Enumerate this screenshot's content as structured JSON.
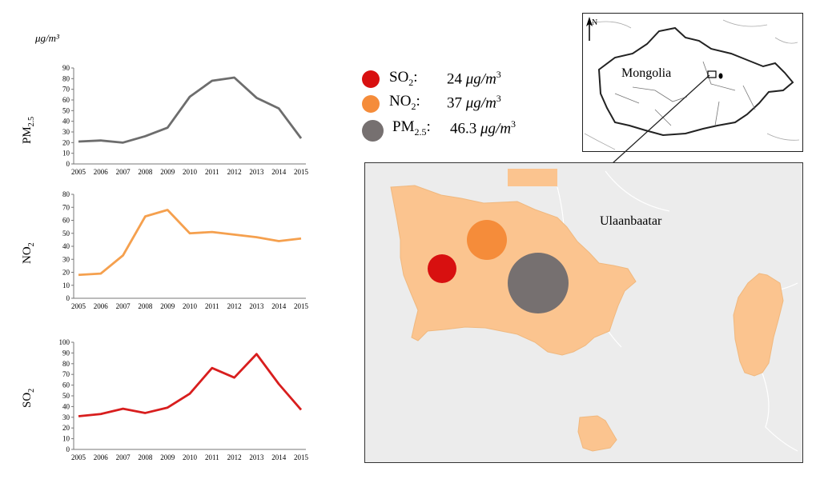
{
  "chart_data": [
    {
      "type": "line",
      "id": "pm25",
      "ylabel": "PM",
      "ylabel_sub": "2.5",
      "unit_label": "μg/m³",
      "color": "#6d6d6d",
      "x": [
        2005,
        2006,
        2007,
        2008,
        2009,
        2010,
        2011,
        2012,
        2013,
        2014,
        2015
      ],
      "values": [
        21,
        22,
        20,
        26,
        34,
        63,
        78,
        81,
        62,
        52,
        24
      ],
      "yticks": [
        0,
        10,
        20,
        30,
        40,
        50,
        60,
        70,
        80,
        90
      ],
      "ylim": [
        0,
        90
      ]
    },
    {
      "type": "line",
      "id": "no2",
      "ylabel": "NO",
      "ylabel_sub": "2",
      "color": "#f5a04e",
      "x": [
        2005,
        2006,
        2007,
        2008,
        2009,
        2010,
        2011,
        2012,
        2013,
        2014,
        2015
      ],
      "values": [
        18,
        19,
        33,
        63,
        68,
        50,
        51,
        49,
        47,
        44,
        46
      ],
      "yticks": [
        0,
        10,
        20,
        30,
        40,
        50,
        60,
        70,
        80
      ],
      "ylim": [
        0,
        80
      ]
    },
    {
      "type": "line",
      "id": "so2",
      "ylabel": "SO",
      "ylabel_sub": "2",
      "color": "#d81e1e",
      "x": [
        2005,
        2006,
        2007,
        2008,
        2009,
        2010,
        2011,
        2012,
        2013,
        2014,
        2015
      ],
      "values": [
        31,
        33,
        38,
        34,
        39,
        52,
        76,
        67,
        89,
        61,
        37
      ],
      "yticks": [
        0,
        10,
        20,
        30,
        40,
        50,
        60,
        70,
        80,
        90,
        100
      ],
      "ylim": [
        0,
        100
      ]
    }
  ],
  "legend": {
    "items": [
      {
        "name": "SO",
        "sub": "2",
        "value": "24",
        "unit": "μg/m",
        "sup": "3",
        "color": "#d81010"
      },
      {
        "name": "NO",
        "sub": "2",
        "value": "37",
        "unit": "μg/m",
        "sup": "3",
        "color": "#f58c3a"
      },
      {
        "name": "PM",
        "sub": "2.5",
        "value": "46.3",
        "unit": "μg/m",
        "sup": "3",
        "color": "#767070"
      }
    ]
  },
  "map": {
    "inset_label": "Mongolia",
    "city_label": "Ulaanbaatar",
    "north_symbol": "N",
    "region_fill": "#fbc48f",
    "background": "#ececec",
    "bubbles": [
      {
        "pollutant": "SO2",
        "concentration": 24,
        "color": "#d81010"
      },
      {
        "pollutant": "NO2",
        "concentration": 37,
        "color": "#f58c3a"
      },
      {
        "pollutant": "PM2.5",
        "concentration": 46.3,
        "color": "#767070"
      }
    ]
  }
}
